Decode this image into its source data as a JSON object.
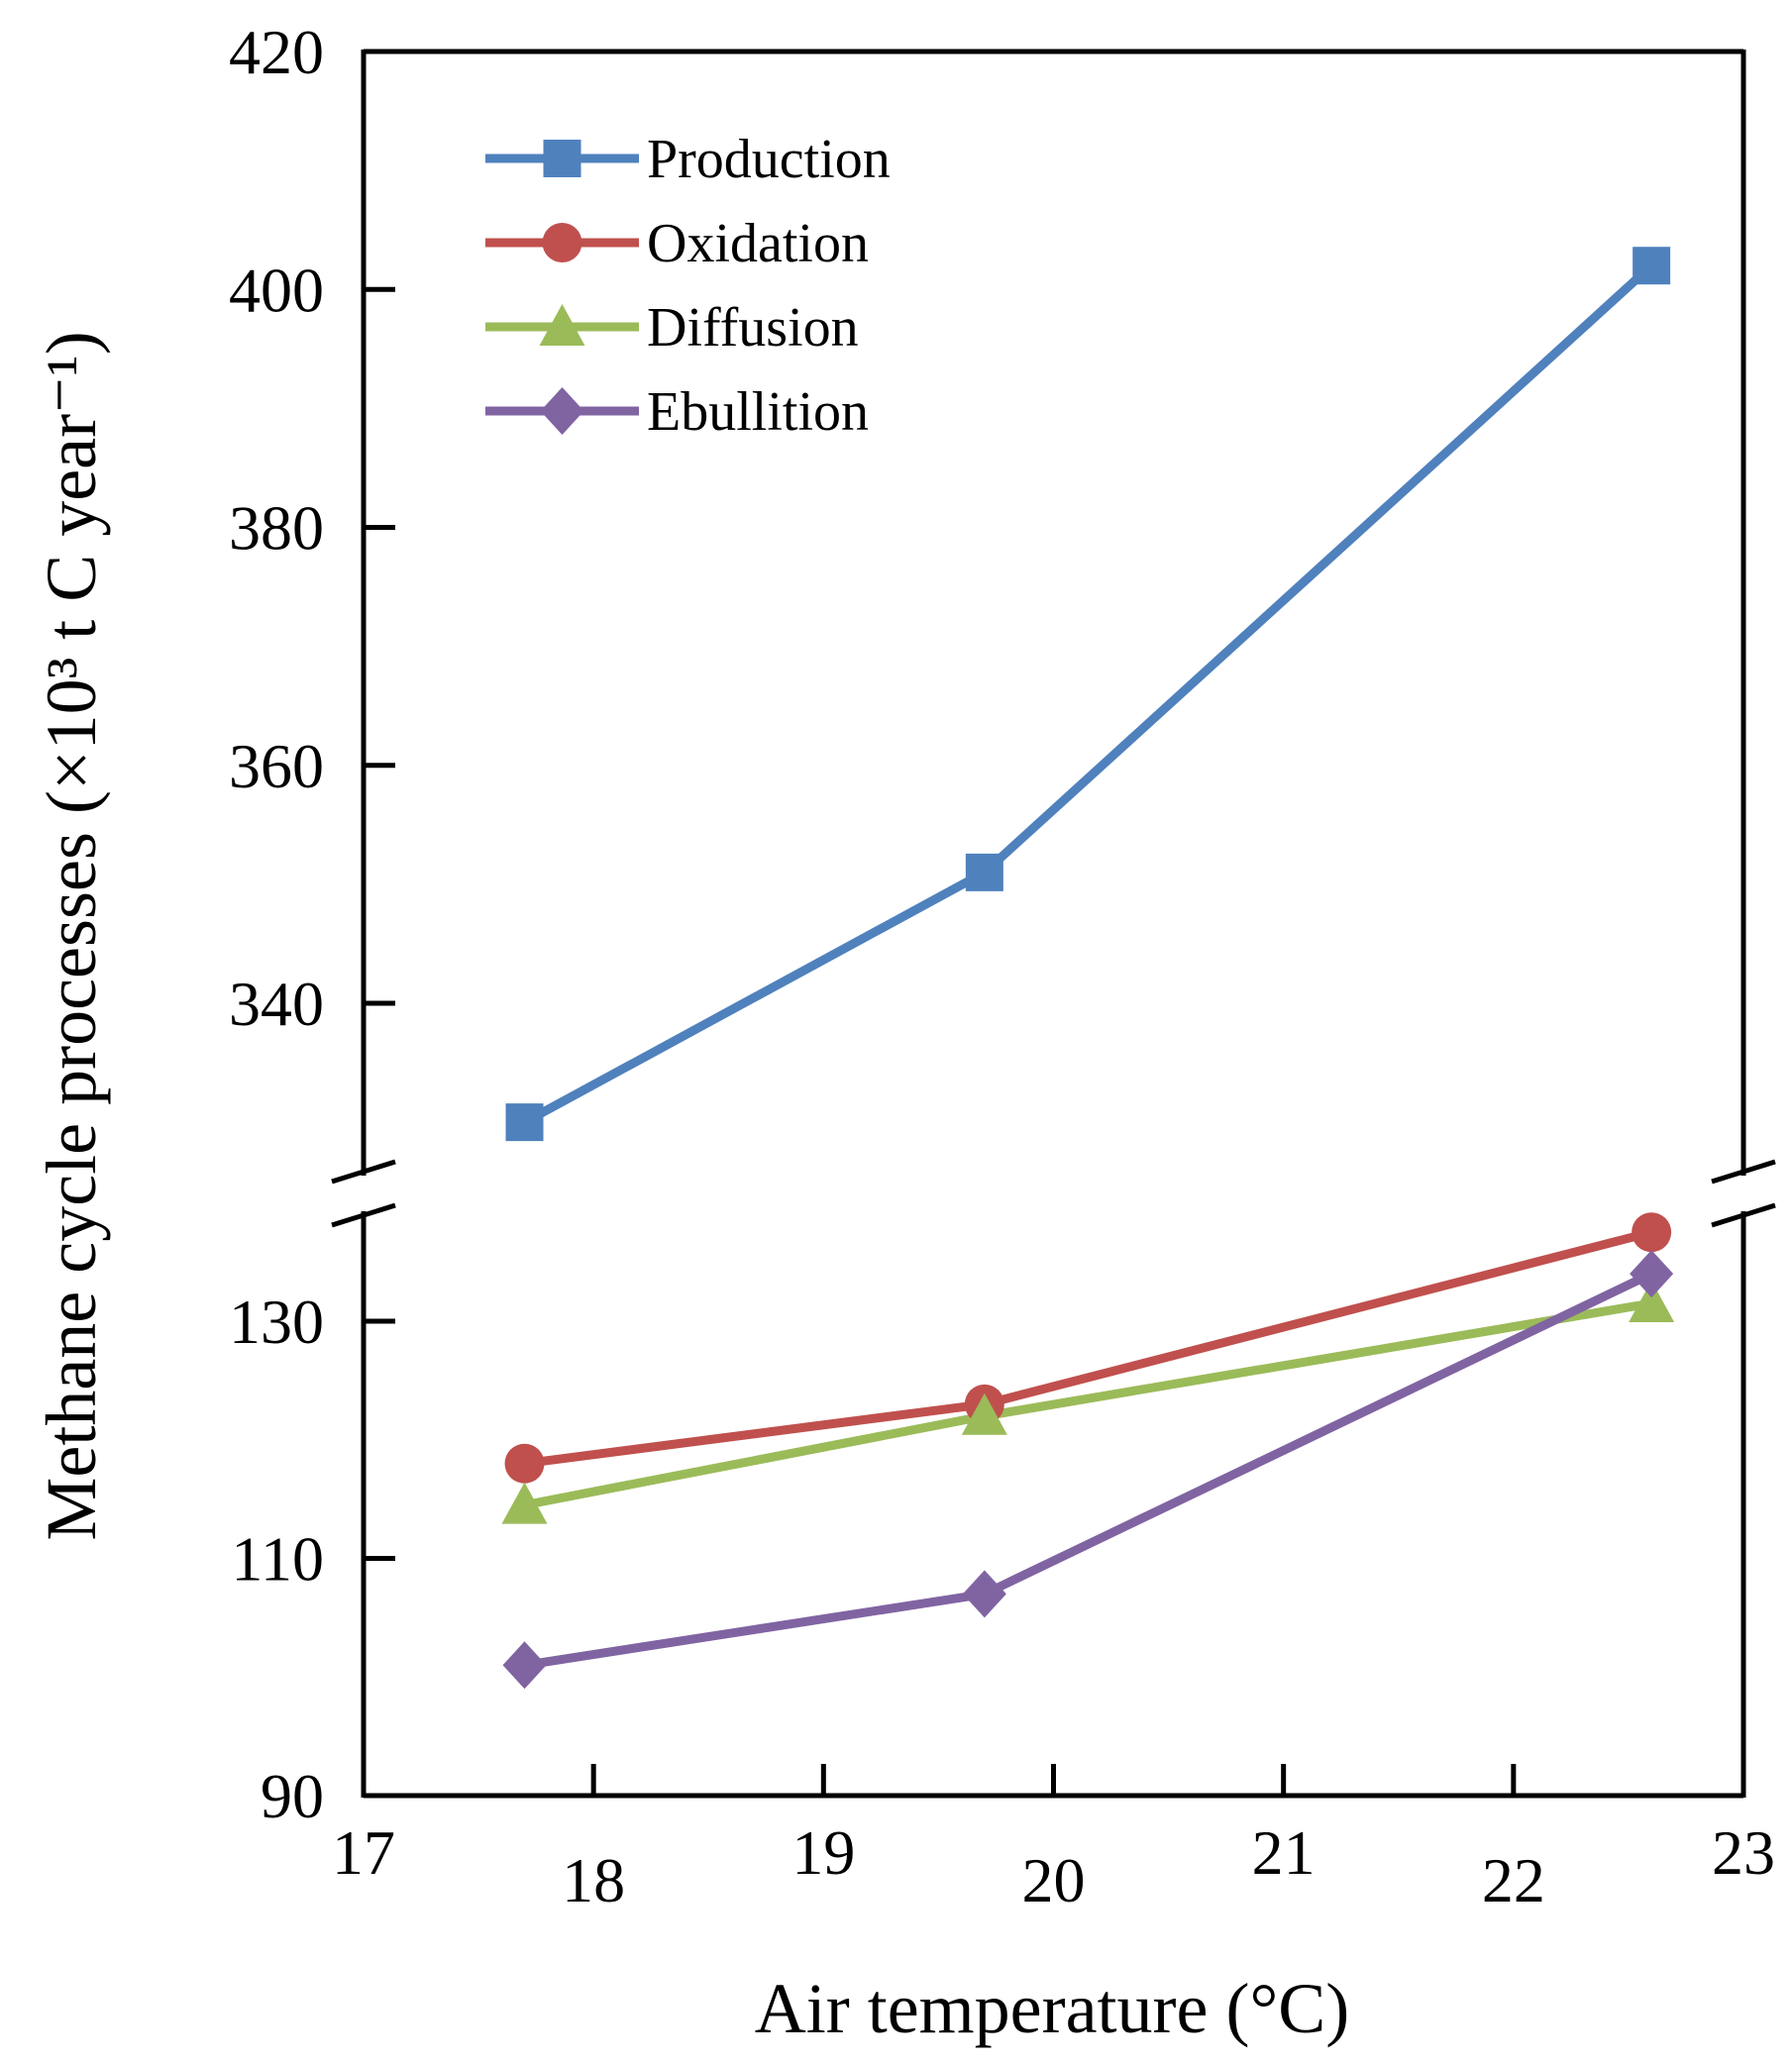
{
  "chart_data": {
    "type": "line",
    "xlabel": "Air temperature (°C)",
    "ylabel": "Methane cycle processes (×10³ t C year⁻¹)",
    "xlim": [
      17,
      23
    ],
    "x_ticks": [
      "17",
      "18",
      "19",
      "20",
      "21",
      "22",
      "23"
    ],
    "y_axis_broken": true,
    "ylim_lower": [
      90,
      143
    ],
    "ylim_upper": [
      323,
      420
    ],
    "y_ticks_lower": [
      "90",
      "110",
      "130"
    ],
    "y_ticks_upper": [
      "340",
      "360",
      "380",
      "400",
      "420"
    ],
    "legend_position": "top-left",
    "grid": false,
    "x": [
      17.7,
      19.7,
      22.6
    ],
    "series": [
      {
        "name": "Production",
        "values": [
          330,
          351,
          402
        ],
        "color": "#4f81bd",
        "marker": "square"
      },
      {
        "name": "Oxidation",
        "values": [
          118,
          123,
          137.5
        ],
        "color": "#c0504d",
        "marker": "circle"
      },
      {
        "name": "Diffusion",
        "values": [
          114.5,
          122,
          131.5
        ],
        "color": "#9bbb59",
        "marker": "triangle"
      },
      {
        "name": "Ebullition",
        "values": [
          101,
          107,
          134
        ],
        "color": "#8064a2",
        "marker": "diamond"
      }
    ]
  }
}
